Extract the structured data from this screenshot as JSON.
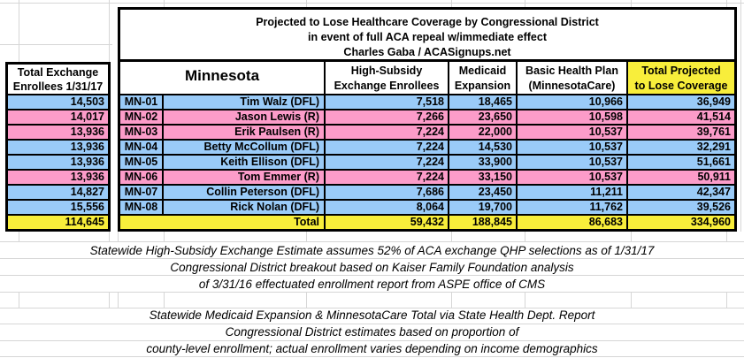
{
  "title": {
    "line1": "Projected to Lose Healthcare Coverage by Congressional District",
    "line2": "in event of full ACA repeal w/immediate effect",
    "line3": "Charles Gaba / ACASignups.net"
  },
  "left_table": {
    "header_line1": "Total Exchange",
    "header_line2": "Enrollees 1/31/17"
  },
  "table": {
    "state_header": "Minnesota",
    "col_headers": {
      "high_subsidy_line1": "High-Subsidy",
      "high_subsidy_line2": "Exchange Enrollees",
      "medicaid_line1": "Medicaid",
      "medicaid_line2": "Expansion",
      "bhp_line1": "Basic Health Plan",
      "bhp_line2": "(MinnesotaCare)",
      "total_line1": "Total Projected",
      "total_line2": "to Lose Coverage"
    },
    "rows": [
      {
        "district": "MN-01",
        "rep": "Tim Walz (DFL)",
        "party": "DFL",
        "exchange_total": "14,503",
        "high_subsidy": "7,518",
        "medicaid": "18,465",
        "bhp": "10,966",
        "total": "36,949"
      },
      {
        "district": "MN-02",
        "rep": "Jason Lewis (R)",
        "party": "R",
        "exchange_total": "14,017",
        "high_subsidy": "7,266",
        "medicaid": "23,650",
        "bhp": "10,598",
        "total": "41,514"
      },
      {
        "district": "MN-03",
        "rep": "Erik Paulsen (R)",
        "party": "R",
        "exchange_total": "13,936",
        "high_subsidy": "7,224",
        "medicaid": "22,000",
        "bhp": "10,537",
        "total": "39,761"
      },
      {
        "district": "MN-04",
        "rep": "Betty McCollum (DFL)",
        "party": "DFL",
        "exchange_total": "13,936",
        "high_subsidy": "7,224",
        "medicaid": "14,530",
        "bhp": "10,537",
        "total": "32,291"
      },
      {
        "district": "MN-05",
        "rep": "Keith Ellison (DFL)",
        "party": "DFL",
        "exchange_total": "13,936",
        "high_subsidy": "7,224",
        "medicaid": "33,900",
        "bhp": "10,537",
        "total": "51,661"
      },
      {
        "district": "MN-06",
        "rep": "Tom Emmer (R)",
        "party": "R",
        "exchange_total": "13,936",
        "high_subsidy": "7,224",
        "medicaid": "33,150",
        "bhp": "10,537",
        "total": "50,911"
      },
      {
        "district": "MN-07",
        "rep": "Collin Peterson (DFL)",
        "party": "DFL",
        "exchange_total": "14,827",
        "high_subsidy": "7,686",
        "medicaid": "23,450",
        "bhp": "11,211",
        "total": "42,347"
      },
      {
        "district": "MN-08",
        "rep": "Rick Nolan (DFL)",
        "party": "DFL",
        "exchange_total": "15,556",
        "high_subsidy": "8,064",
        "medicaid": "19,700",
        "bhp": "11,762",
        "total": "39,526"
      }
    ],
    "total_row": {
      "label": "Total",
      "exchange_total": "114,645",
      "high_subsidy": "59,432",
      "medicaid": "188,845",
      "bhp": "86,683",
      "total": "334,960"
    }
  },
  "notes": [
    {
      "line1": "Statewide High-Subsidy Exchange Estimate assumes 52% of ACA exchange QHP selections as of 1/31/17",
      "line2": "Congressional District breakout based on Kaiser Family Foundation analysis",
      "line3": "of 3/31/16 effectuated enrollment report from ASPE office of CMS"
    },
    {
      "line1": "Statewide Medicaid Expansion & MinnesotaCare Total via State Health Dept. Report",
      "line2": "Congressional District estimates based on proportion of",
      "line3": "county-level enrollment; actual enrollment varies depending on income demographics"
    }
  ],
  "colors": {
    "dfl": "#9ACBF8",
    "rep": "#FC9CC9",
    "total": "#F8EE3B",
    "grid": "#D6D6D6",
    "border": "#000000"
  }
}
